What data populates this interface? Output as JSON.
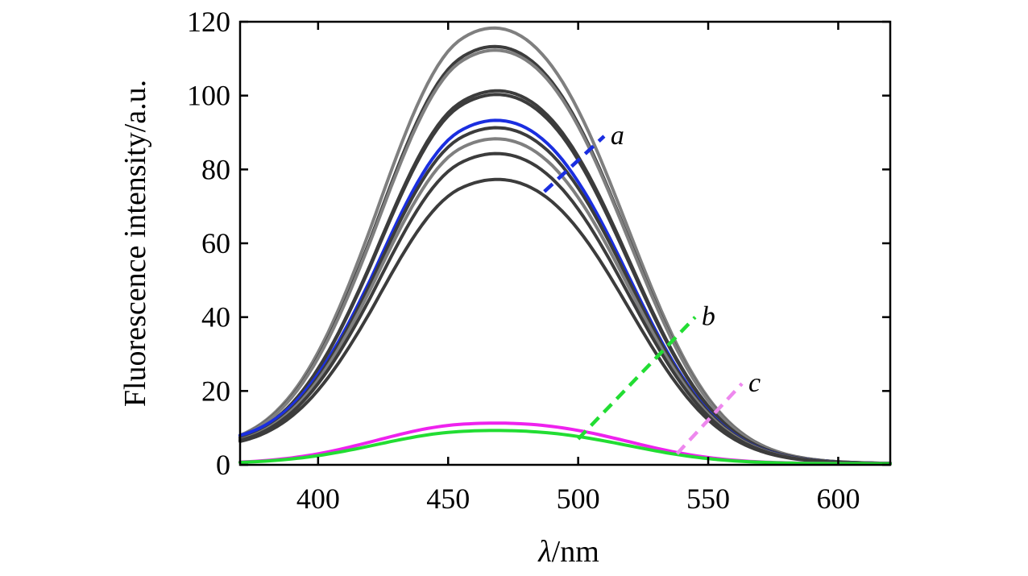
{
  "chart_data": {
    "type": "line",
    "title": "",
    "xlabel_var": "λ",
    "xlabel_unit": "/nm",
    "ylabel": "Fluorescence intensity/a.u.",
    "xlim": [
      370,
      620
    ],
    "ylim": [
      0,
      120
    ],
    "xticks": [
      400,
      450,
      500,
      550,
      600
    ],
    "yticks": [
      0,
      20,
      40,
      60,
      80,
      100,
      120
    ],
    "grid": false,
    "legend": "none",
    "annotations": [
      {
        "label": "a",
        "color": "#1a2ee0",
        "from": [
          487,
          74
        ],
        "to": [
          510,
          89
        ]
      },
      {
        "label": "b",
        "color": "#22dd33",
        "from": [
          500,
          7
        ],
        "to": [
          545,
          40
        ]
      },
      {
        "label": "c",
        "color": "#ee88ee",
        "from": [
          538,
          3
        ],
        "to": [
          563,
          22
        ]
      }
    ],
    "series": [
      {
        "name": "gray-1",
        "color": "#7f7f7f",
        "peak": 118,
        "shoulder": 0.7,
        "base": 3
      },
      {
        "name": "dark-1",
        "color": "#3c3c3c",
        "peak": 113,
        "shoulder": 0.72,
        "base": 3
      },
      {
        "name": "gray-2",
        "color": "#7f7f7f",
        "peak": 112,
        "shoulder": 0.73,
        "base": 3
      },
      {
        "name": "dark-2",
        "color": "#3c3c3c",
        "peak": 101,
        "shoulder": 0.78,
        "base": 3
      },
      {
        "name": "dark-3",
        "color": "#3c3c3c",
        "peak": 100,
        "shoulder": 0.77,
        "base": 3
      },
      {
        "name": "a",
        "color": "#1a2ee0",
        "peak": 93,
        "shoulder": 0.76,
        "base": 4
      },
      {
        "name": "dark-4",
        "color": "#3c3c3c",
        "peak": 91,
        "shoulder": 0.76,
        "base": 3
      },
      {
        "name": "gray-3",
        "color": "#7f7f7f",
        "peak": 88,
        "shoulder": 0.75,
        "base": 3
      },
      {
        "name": "dark-5",
        "color": "#3c3c3c",
        "peak": 84,
        "shoulder": 0.76,
        "base": 3
      },
      {
        "name": "dark-6",
        "color": "#3c3c3c",
        "peak": 77,
        "shoulder": 0.78,
        "base": 3
      },
      {
        "name": "c",
        "color": "#ee22ee",
        "peak": 11,
        "shoulder": 0.75,
        "base": 0
      },
      {
        "name": "b",
        "color": "#22dd33",
        "peak": 9,
        "shoulder": 0.75,
        "base": 0
      }
    ]
  }
}
